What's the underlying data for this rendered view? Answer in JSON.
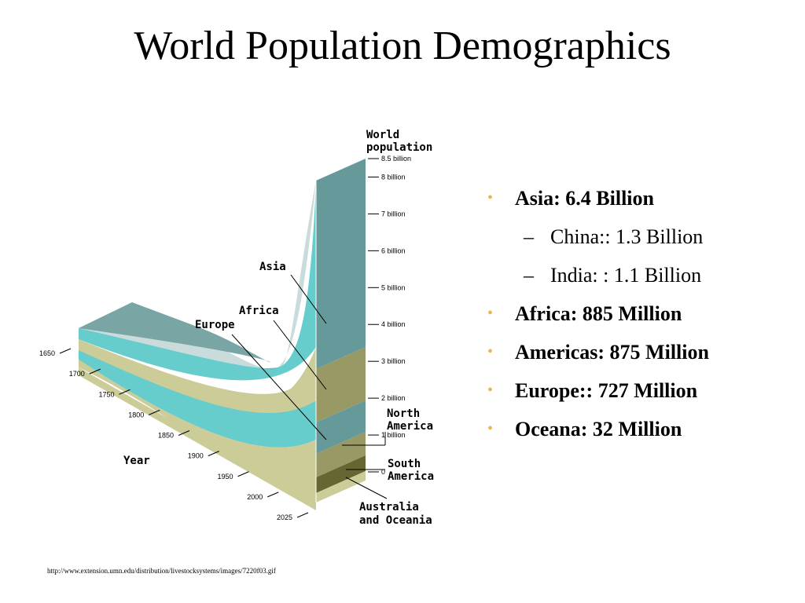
{
  "slide": {
    "title": "World Population Demographics",
    "source_url": "http://www.extension.umn.edu/distribution/livestocksystems/images/7220f03.gif"
  },
  "bullets": [
    {
      "level": 1,
      "text": "Asia: 6.4 Billion"
    },
    {
      "level": 2,
      "text": "China:: 1.3 Billion"
    },
    {
      "level": 2,
      "text": "India: : 1.1 Billion"
    },
    {
      "level": 1,
      "text": "Africa: 885 Million"
    },
    {
      "level": 1,
      "text": "Americas: 875 Million"
    },
    {
      "level": 1,
      "text": "Europe:: 727 Million"
    },
    {
      "level": 1,
      "text": "Oceana: 32 Million"
    }
  ],
  "colors": {
    "bullet": "#e8b84a",
    "asia": "#66cccc",
    "asia_side": "#669999",
    "africa": "#cccc99",
    "africa_side": "#999966",
    "europe": "#66cccc",
    "north_america": "#cccc99",
    "south_america": "#666633",
    "oceania": "#cccc99",
    "top_surface": "#669999"
  },
  "chart_data": {
    "type": "area",
    "style": "3d stacked population area",
    "axis_title": "World population",
    "x_title": "Year",
    "x_ticks": [
      "1650",
      "1700",
      "1750",
      "1800",
      "1850",
      "1900",
      "1950",
      "2000",
      "2025"
    ],
    "y_ticks": [
      "8.5 billion",
      "8 billion",
      "7 billion",
      "6 billion",
      "5 billion",
      "4 billion",
      "3 billion",
      "2 billion",
      "1 billion",
      "0"
    ],
    "y_range": [
      0,
      8.5
    ],
    "units": "billion",
    "regions": [
      "Asia",
      "Africa",
      "Europe",
      "North America",
      "South America",
      "Australia and Oceania"
    ],
    "stack_order_bottom_to_top": [
      "Australia and Oceania",
      "South America",
      "North America",
      "Europe",
      "Africa",
      "Asia"
    ],
    "series_2025_billion": [
      {
        "name": "Asia",
        "values": [
          4.9
        ]
      },
      {
        "name": "Africa",
        "values": [
          1.6
        ]
      },
      {
        "name": "Europe",
        "values": [
          0.95
        ]
      },
      {
        "name": "North America",
        "values": [
          0.35
        ]
      },
      {
        "name": "South America",
        "values": [
          0.45
        ]
      },
      {
        "name": "Australia and Oceania",
        "values": [
          0.2
        ]
      }
    ],
    "total_2025_billion": 8.45,
    "region_labels": [
      {
        "text": "Asia"
      },
      {
        "text": "Africa"
      },
      {
        "text": "Europe"
      },
      {
        "text": "North America"
      },
      {
        "text": "South America"
      },
      {
        "text": "Australia and Oceania"
      }
    ]
  }
}
